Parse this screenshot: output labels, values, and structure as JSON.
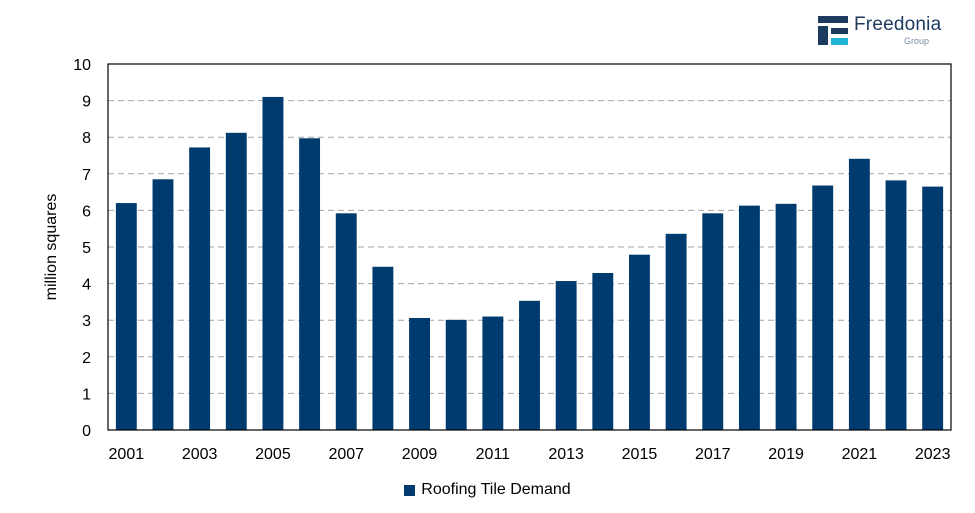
{
  "brand": {
    "name": "Freedonia",
    "sub": "Group",
    "primary_color": "#1d3a5f",
    "accent_color": "#1fb3d6"
  },
  "chart_data": {
    "type": "bar",
    "ylabel": "million squares",
    "xlabel": "",
    "ylim": [
      0,
      10
    ],
    "yticks": [
      0,
      1,
      2,
      3,
      4,
      5,
      6,
      7,
      8,
      9,
      10
    ],
    "grid": true,
    "bar_color": "#003b6f",
    "categories": [
      "2001",
      "2002",
      "2003",
      "2004",
      "2005",
      "2006",
      "2007",
      "2008",
      "2009",
      "2010",
      "2011",
      "2012",
      "2013",
      "2014",
      "2015",
      "2016",
      "2017",
      "2018",
      "2019",
      "2020",
      "2021",
      "2022",
      "2023"
    ],
    "x_tick_labels": [
      "2001",
      "",
      "2003",
      "",
      "2005",
      "",
      "2007",
      "",
      "2009",
      "",
      "2011",
      "",
      "2013",
      "",
      "2015",
      "",
      "2017",
      "",
      "2019",
      "",
      "2021",
      "",
      "2023"
    ],
    "series": [
      {
        "name": "Roofing Tile Demand",
        "values": [
          6.2,
          6.85,
          7.72,
          8.12,
          9.1,
          7.97,
          5.92,
          4.46,
          3.06,
          3.01,
          3.1,
          3.53,
          4.07,
          4.29,
          4.79,
          5.36,
          5.92,
          6.13,
          6.18,
          6.68,
          7.41,
          6.82,
          6.65
        ]
      }
    ],
    "legend_position": "bottom-center"
  }
}
